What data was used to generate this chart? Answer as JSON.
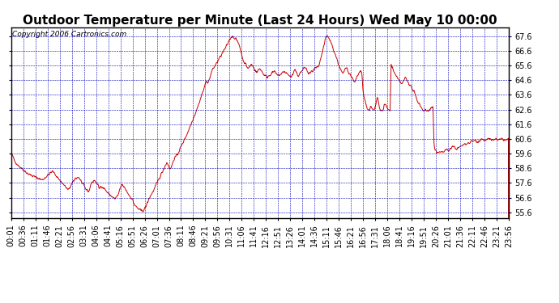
{
  "title": "Outdoor Temperature per Minute (Last 24 Hours) Wed May 10 00:00",
  "copyright": "Copyright 2006 Cartronics.com",
  "yticks": [
    55.6,
    56.6,
    57.6,
    58.6,
    59.6,
    60.6,
    61.6,
    62.6,
    63.6,
    64.6,
    65.6,
    66.6,
    67.6
  ],
  "ylim": [
    55.2,
    68.2
  ],
  "line_color": "#cc0000",
  "background_color": "#ffffff",
  "plot_background": "#ffffff",
  "grid_color": "#0000bb",
  "title_fontsize": 11,
  "copyright_fontsize": 6.5,
  "tick_fontsize": 7,
  "xtick_labels": [
    "00:01",
    "00:36",
    "01:11",
    "01:46",
    "02:21",
    "02:56",
    "03:31",
    "04:06",
    "04:41",
    "05:16",
    "05:51",
    "06:26",
    "07:01",
    "07:36",
    "08:11",
    "08:46",
    "09:21",
    "09:56",
    "10:31",
    "11:06",
    "11:41",
    "12:16",
    "12:51",
    "13:26",
    "14:01",
    "14:36",
    "15:11",
    "15:46",
    "16:21",
    "16:56",
    "17:31",
    "18:06",
    "18:41",
    "19:16",
    "19:51",
    "20:26",
    "21:01",
    "21:36",
    "22:11",
    "22:46",
    "23:21",
    "23:56"
  ],
  "control_points": [
    [
      0,
      59.6
    ],
    [
      5,
      59.4
    ],
    [
      10,
      59.1
    ],
    [
      20,
      58.8
    ],
    [
      35,
      58.5
    ],
    [
      50,
      58.2
    ],
    [
      70,
      58.0
    ],
    [
      90,
      57.8
    ],
    [
      110,
      58.2
    ],
    [
      120,
      58.4
    ],
    [
      130,
      58.1
    ],
    [
      140,
      57.8
    ],
    [
      155,
      57.4
    ],
    [
      165,
      57.1
    ],
    [
      175,
      57.5
    ],
    [
      185,
      57.9
    ],
    [
      195,
      58.0
    ],
    [
      205,
      57.6
    ],
    [
      215,
      57.2
    ],
    [
      225,
      57.0
    ],
    [
      230,
      57.5
    ],
    [
      240,
      57.8
    ],
    [
      250,
      57.5
    ],
    [
      255,
      57.2
    ],
    [
      260,
      57.4
    ],
    [
      270,
      57.2
    ],
    [
      280,
      56.9
    ],
    [
      290,
      56.7
    ],
    [
      300,
      56.5
    ],
    [
      310,
      56.8
    ],
    [
      315,
      57.2
    ],
    [
      320,
      57.5
    ],
    [
      330,
      57.2
    ],
    [
      340,
      56.8
    ],
    [
      350,
      56.5
    ],
    [
      355,
      56.2
    ],
    [
      360,
      56.0
    ],
    [
      365,
      55.9
    ],
    [
      370,
      55.8
    ],
    [
      375,
      55.7
    ],
    [
      380,
      55.7
    ],
    [
      385,
      55.8
    ],
    [
      390,
      56.0
    ],
    [
      395,
      56.3
    ],
    [
      400,
      56.6
    ],
    [
      410,
      57.0
    ],
    [
      420,
      57.5
    ],
    [
      430,
      58.0
    ],
    [
      440,
      58.5
    ],
    [
      450,
      59.0
    ],
    [
      455,
      58.8
    ],
    [
      460,
      58.5
    ],
    [
      465,
      58.8
    ],
    [
      470,
      59.2
    ],
    [
      480,
      59.5
    ],
    [
      490,
      60.0
    ],
    [
      500,
      60.5
    ],
    [
      510,
      61.0
    ],
    [
      520,
      61.6
    ],
    [
      530,
      62.2
    ],
    [
      540,
      62.8
    ],
    [
      550,
      63.5
    ],
    [
      560,
      64.2
    ],
    [
      565,
      64.6
    ],
    [
      570,
      64.4
    ],
    [
      575,
      64.8
    ],
    [
      580,
      65.2
    ],
    [
      590,
      65.6
    ],
    [
      600,
      66.0
    ],
    [
      610,
      66.4
    ],
    [
      620,
      66.8
    ],
    [
      625,
      67.0
    ],
    [
      630,
      67.3
    ],
    [
      635,
      67.5
    ],
    [
      640,
      67.6
    ],
    [
      645,
      67.5
    ],
    [
      650,
      67.4
    ],
    [
      655,
      67.2
    ],
    [
      660,
      67.0
    ],
    [
      665,
      66.5
    ],
    [
      670,
      66.0
    ],
    [
      675,
      65.8
    ],
    [
      680,
      65.6
    ],
    [
      685,
      65.4
    ],
    [
      690,
      65.5
    ],
    [
      695,
      65.7
    ],
    [
      700,
      65.5
    ],
    [
      705,
      65.3
    ],
    [
      710,
      65.1
    ],
    [
      715,
      65.3
    ],
    [
      720,
      65.4
    ],
    [
      725,
      65.2
    ],
    [
      730,
      65.0
    ],
    [
      740,
      64.8
    ],
    [
      750,
      65.0
    ],
    [
      760,
      65.2
    ],
    [
      765,
      65.1
    ],
    [
      770,
      64.9
    ],
    [
      780,
      65.0
    ],
    [
      790,
      65.2
    ],
    [
      800,
      65.0
    ],
    [
      810,
      64.8
    ],
    [
      815,
      65.0
    ],
    [
      820,
      65.3
    ],
    [
      825,
      65.1
    ],
    [
      830,
      64.9
    ],
    [
      840,
      65.2
    ],
    [
      850,
      65.5
    ],
    [
      855,
      65.3
    ],
    [
      860,
      65.0
    ],
    [
      870,
      65.2
    ],
    [
      880,
      65.4
    ],
    [
      890,
      65.5
    ],
    [
      895,
      66.0
    ],
    [
      900,
      66.5
    ],
    [
      905,
      67.0
    ],
    [
      910,
      67.5
    ],
    [
      915,
      67.6
    ],
    [
      920,
      67.4
    ],
    [
      925,
      67.2
    ],
    [
      930,
      66.8
    ],
    [
      935,
      66.5
    ],
    [
      940,
      66.2
    ],
    [
      945,
      65.8
    ],
    [
      950,
      65.5
    ],
    [
      955,
      65.2
    ],
    [
      960,
      65.0
    ],
    [
      965,
      65.3
    ],
    [
      970,
      65.5
    ],
    [
      975,
      65.2
    ],
    [
      980,
      65.0
    ],
    [
      985,
      64.8
    ],
    [
      990,
      64.6
    ],
    [
      995,
      64.5
    ],
    [
      1000,
      64.8
    ],
    [
      1005,
      65.0
    ],
    [
      1010,
      65.2
    ],
    [
      1015,
      65.0
    ],
    [
      1016,
      64.5
    ],
    [
      1017,
      64.0
    ],
    [
      1020,
      63.5
    ],
    [
      1025,
      63.0
    ],
    [
      1030,
      62.7
    ],
    [
      1035,
      62.5
    ],
    [
      1040,
      62.8
    ],
    [
      1045,
      62.6
    ],
    [
      1050,
      62.5
    ],
    [
      1055,
      63.0
    ],
    [
      1060,
      63.5
    ],
    [
      1065,
      62.8
    ],
    [
      1068,
      62.5
    ],
    [
      1070,
      62.5
    ],
    [
      1072,
      62.6
    ],
    [
      1075,
      62.5
    ],
    [
      1080,
      63.0
    ],
    [
      1085,
      62.8
    ],
    [
      1090,
      62.6
    ],
    [
      1095,
      62.5
    ],
    [
      1000,
      64.8
    ],
    [
      1005,
      65.0
    ],
    [
      1010,
      65.2
    ],
    [
      1015,
      65.0
    ],
    [
      1016,
      64.5
    ],
    [
      1017,
      64.0
    ],
    [
      1020,
      63.5
    ],
    [
      1025,
      63.0
    ],
    [
      1030,
      62.7
    ],
    [
      1035,
      62.5
    ],
    [
      1040,
      62.8
    ],
    [
      1045,
      62.6
    ],
    [
      1050,
      62.5
    ],
    [
      1055,
      63.0
    ],
    [
      1060,
      63.5
    ],
    [
      1065,
      62.8
    ],
    [
      1068,
      62.5
    ],
    [
      1070,
      62.5
    ],
    [
      1072,
      62.6
    ],
    [
      1075,
      62.5
    ],
    [
      1080,
      63.0
    ],
    [
      1085,
      62.8
    ],
    [
      1090,
      62.6
    ],
    [
      1095,
      62.5
    ],
    [
      1097,
      62.6
    ],
    [
      1098,
      65.5
    ],
    [
      1099,
      65.8
    ],
    [
      1100,
      65.6
    ],
    [
      1105,
      65.3
    ],
    [
      1110,
      65.0
    ],
    [
      1115,
      64.8
    ],
    [
      1120,
      64.6
    ],
    [
      1125,
      64.5
    ],
    [
      1130,
      64.3
    ],
    [
      1135,
      64.5
    ],
    [
      1140,
      64.8
    ],
    [
      1145,
      64.6
    ],
    [
      1150,
      64.4
    ],
    [
      1155,
      64.2
    ],
    [
      1160,
      64.0
    ],
    [
      1165,
      63.8
    ],
    [
      1170,
      63.5
    ],
    [
      1175,
      63.2
    ],
    [
      1180,
      63.0
    ],
    [
      1185,
      62.8
    ],
    [
      1190,
      62.6
    ],
    [
      1195,
      62.5
    ],
    [
      1198,
      62.6
    ],
    [
      1200,
      62.5
    ],
    [
      1205,
      62.5
    ],
    [
      1210,
      62.6
    ],
    [
      1215,
      62.7
    ],
    [
      1220,
      62.8
    ],
    [
      1221,
      62.6
    ],
    [
      1222,
      60.5
    ],
    [
      1225,
      59.9
    ],
    [
      1230,
      59.7
    ],
    [
      1235,
      59.6
    ],
    [
      1240,
      59.7
    ],
    [
      1245,
      59.8
    ],
    [
      1250,
      59.7
    ],
    [
      1255,
      59.8
    ],
    [
      1260,
      59.9
    ],
    [
      1265,
      59.8
    ],
    [
      1270,
      59.9
    ],
    [
      1275,
      60.0
    ],
    [
      1280,
      60.1
    ],
    [
      1285,
      60.0
    ],
    [
      1290,
      59.9
    ],
    [
      1295,
      60.0
    ],
    [
      1300,
      60.1
    ],
    [
      1310,
      60.2
    ],
    [
      1320,
      60.3
    ],
    [
      1330,
      60.4
    ],
    [
      1340,
      60.5
    ],
    [
      1350,
      60.4
    ],
    [
      1355,
      60.5
    ],
    [
      1360,
      60.6
    ],
    [
      1370,
      60.5
    ],
    [
      1380,
      60.6
    ],
    [
      1390,
      60.5
    ],
    [
      1400,
      60.6
    ],
    [
      1410,
      60.5
    ],
    [
      1420,
      60.6
    ],
    [
      1430,
      60.5
    ],
    [
      1440,
      60.6
    ]
  ]
}
